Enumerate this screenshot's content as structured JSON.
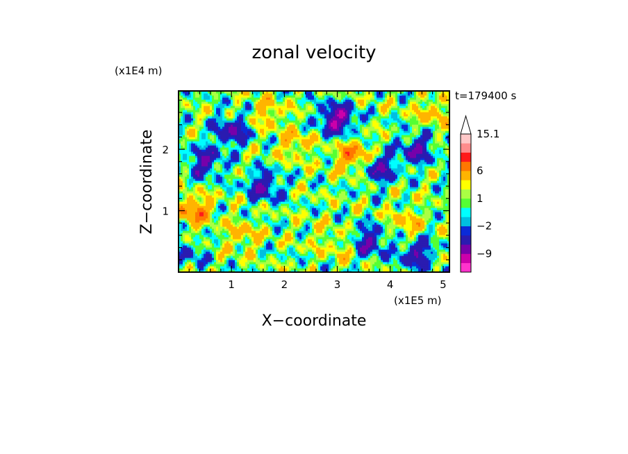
{
  "chart_data": {
    "type": "heatmap",
    "title": "zonal velocity",
    "xlabel": "X−coordinate",
    "ylabel": "Z−coordinate",
    "x_unit": "(x1E5 m)",
    "y_unit": "(x1E4 m)",
    "time_label": "t=179400 s",
    "xlim": [
      0,
      5.12
    ],
    "ylim": [
      0,
      2.95
    ],
    "x_ticks": [
      1,
      2,
      3,
      4,
      5
    ],
    "y_ticks": [
      1,
      2
    ],
    "colorbar": {
      "levels": [
        -15,
        -12,
        -9,
        -6,
        -3,
        -2,
        -1,
        0,
        1,
        2,
        3,
        6,
        9,
        12,
        15.1
      ],
      "colors": [
        "#ff33cc",
        "#cc00aa",
        "#7700aa",
        "#2a1bb0",
        "#0b2bd8",
        "#00bfe0",
        "#00ffff",
        "#55ff33",
        "#aaff44",
        "#ffff00",
        "#ffb400",
        "#ff7700",
        "#ff1a1a",
        "#ff8c8c",
        "#ffc8c8"
      ],
      "tick_labels": [
        "15.1",
        "6",
        "1",
        "−2",
        "−9"
      ],
      "tick_values": [
        15.1,
        6,
        1,
        -2,
        -9
      ],
      "extend": "max"
    },
    "features": [
      {
        "x": 3.0,
        "z": 2.5,
        "value": -9
      },
      {
        "x": 0.5,
        "z": 1.8,
        "value": -6
      },
      {
        "x": 1.6,
        "z": 1.4,
        "value": -6
      },
      {
        "x": 3.8,
        "z": 1.7,
        "value": -6
      },
      {
        "x": 4.5,
        "z": 2.0,
        "value": -6
      },
      {
        "x": 1.0,
        "z": 2.3,
        "value": -6
      },
      {
        "x": 2.2,
        "z": 2.1,
        "value": 3
      },
      {
        "x": 3.3,
        "z": 1.9,
        "value": 6
      },
      {
        "x": 4.3,
        "z": 0.8,
        "value": 3
      },
      {
        "x": 0.3,
        "z": 1.0,
        "value": 6
      },
      {
        "x": 1.2,
        "z": 0.6,
        "value": 3
      },
      {
        "x": 2.6,
        "z": 0.6,
        "value": 1
      },
      {
        "x": 2.0,
        "z": 0.9,
        "value": 0
      },
      {
        "x": 3.1,
        "z": 0.4,
        "value": 2
      },
      {
        "x": 1.7,
        "z": 2.6,
        "value": 3
      },
      {
        "x": 4.8,
        "z": 2.6,
        "value": 3
      },
      {
        "x": 3.6,
        "z": 0.5,
        "value": -6
      },
      {
        "x": 4.5,
        "z": 0.3,
        "value": -6
      },
      {
        "x": 0.2,
        "z": 0.3,
        "value": -3
      }
    ]
  }
}
